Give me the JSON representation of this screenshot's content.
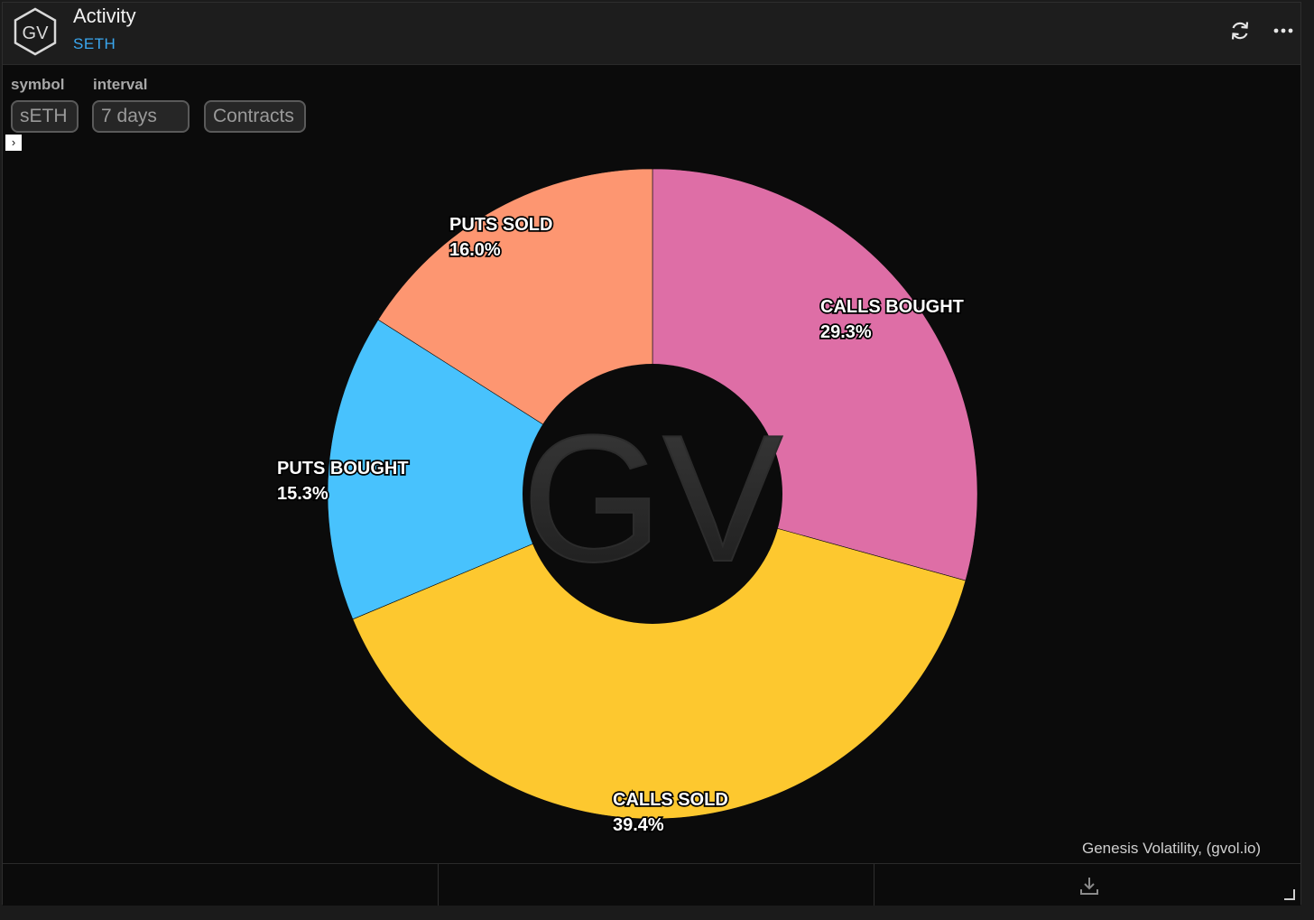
{
  "header": {
    "logo_text": "GV",
    "title": "Activity",
    "subtitle": "SETH"
  },
  "controls": {
    "symbol_label": "symbol",
    "interval_label": "interval",
    "symbol_value": "sETH",
    "interval_value": "7 days",
    "unit_value": "Contracts"
  },
  "icons": {
    "refresh": "refresh-icon",
    "more": "more-icon",
    "expand": "chevron-right-icon",
    "download": "download-icon"
  },
  "colors": {
    "calls_bought": "#de6ea6",
    "calls_sold": "#fdc82f",
    "puts_bought": "#48c2fd",
    "puts_sold": "#fd9671"
  },
  "chart_data": {
    "type": "pie",
    "donut": true,
    "watermark": "GV",
    "slices": [
      {
        "label": "CALLS BOUGHT",
        "value": 29.3,
        "display": "29.3%",
        "color": "#de6ea6"
      },
      {
        "label": "CALLS SOLD",
        "value": 39.4,
        "display": "39.4%",
        "color": "#fdc82f"
      },
      {
        "label": "PUTS BOUGHT",
        "value": 15.3,
        "display": "15.3%",
        "color": "#48c2fd"
      },
      {
        "label": "PUTS SOLD",
        "value": 16.0,
        "display": "16.0%",
        "color": "#fd9671"
      }
    ]
  },
  "attribution": "Genesis Volatility, (gvol.io)"
}
